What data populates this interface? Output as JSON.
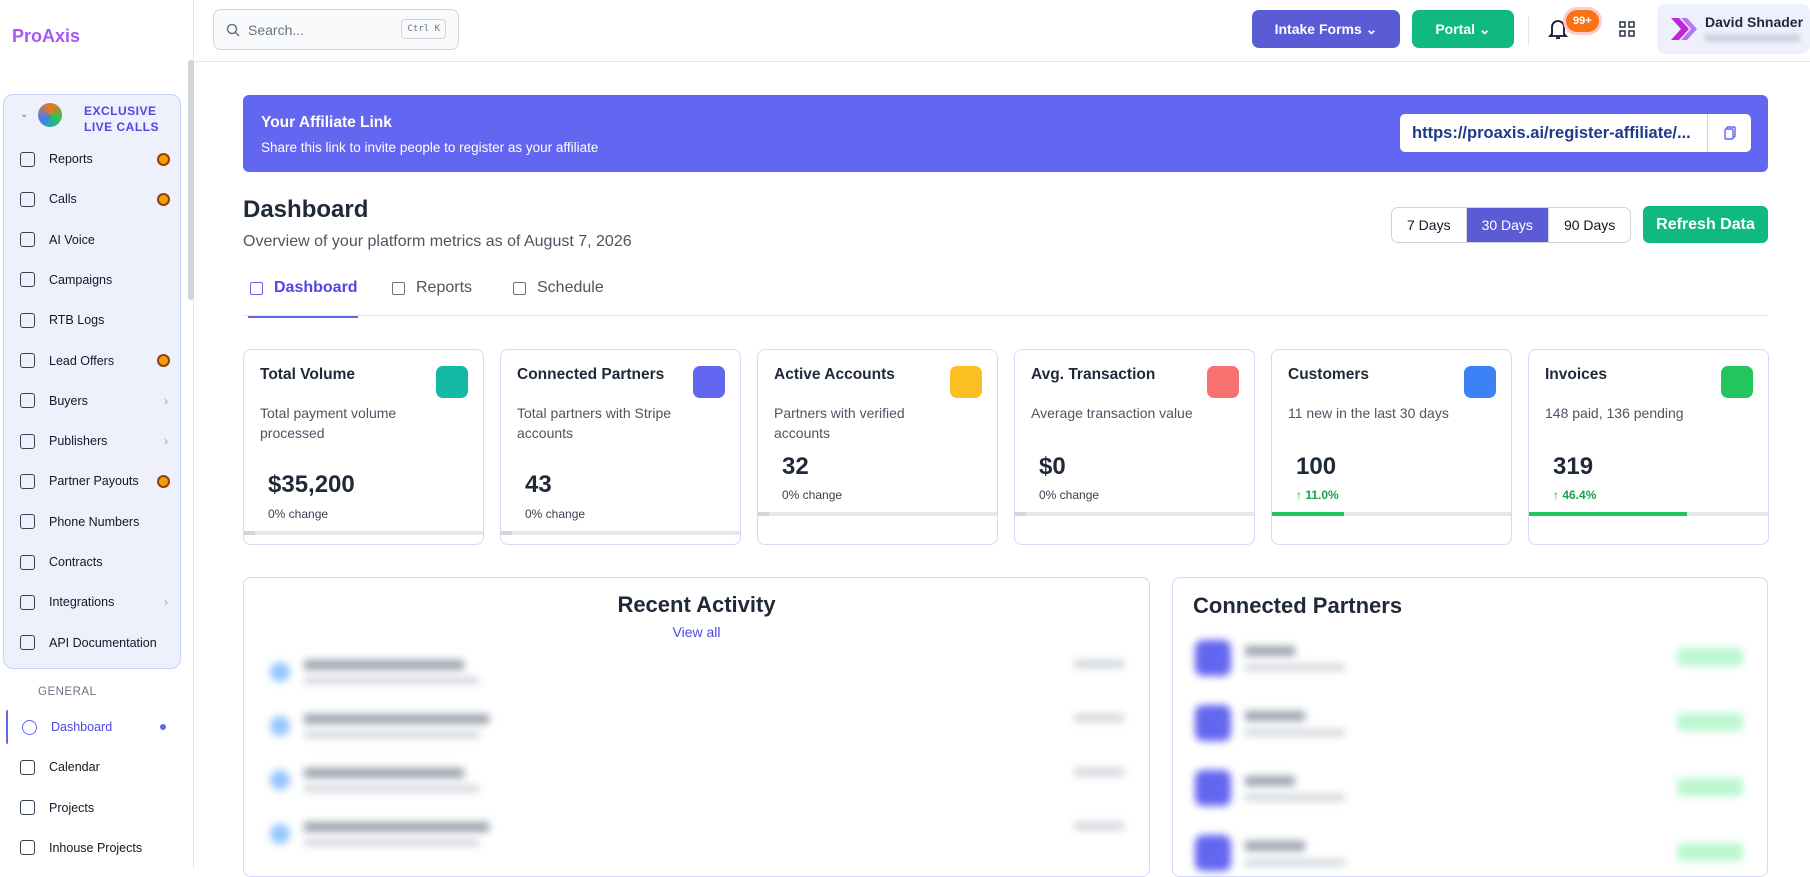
{
  "brand": "ProAxis",
  "search": {
    "placeholder": "Search...",
    "shortcut": "Ctrl K"
  },
  "header": {
    "buttons": [
      "Intake Forms",
      "Portal"
    ],
    "notifications": "99+",
    "user": "David Shnader"
  },
  "sidebar": {
    "section": "EXCLUSIVE LIVE CALLS",
    "items": [
      {
        "label": "Reports",
        "star": true
      },
      {
        "label": "Calls",
        "star": true
      },
      {
        "label": "AI Voice"
      },
      {
        "label": "Campaigns"
      },
      {
        "label": "RTB Logs"
      },
      {
        "label": "Lead Offers",
        "star": true
      },
      {
        "label": "Buyers",
        "chevron": true
      },
      {
        "label": "Publishers",
        "chevron": true
      },
      {
        "label": "Partner Payouts",
        "star": true
      },
      {
        "label": "Phone Numbers"
      },
      {
        "label": "Contracts"
      },
      {
        "label": "Integrations",
        "chevron": true
      },
      {
        "label": "API Documentation"
      }
    ],
    "general": "GENERAL",
    "general_items": [
      {
        "label": "Dashboard",
        "active": true
      },
      {
        "label": "Calendar"
      },
      {
        "label": "Projects"
      },
      {
        "label": "Inhouse Projects"
      }
    ]
  },
  "affiliate": {
    "title": "Your Affiliate Link",
    "subtitle": "Share this link to invite people to register as your affiliate",
    "link": "https://proaxis.ai/register-affiliate/..."
  },
  "dashboard": {
    "title": "Dashboard",
    "subtitle": "Overview of your platform metrics as of August 7, 2026",
    "ranges": [
      "7 Days",
      "30 Days",
      "90 Days"
    ],
    "refresh": "Refresh Data",
    "tabs": [
      "Dashboard",
      "Reports",
      "Schedule"
    ]
  },
  "cards": [
    {
      "title": "Total Volume",
      "description": "Total payment volume processed",
      "value": "$35,200",
      "change": "0% change",
      "color": "#14b8a6"
    },
    {
      "title": "Connected Partners",
      "description": "Total partners with Stripe accounts",
      "value": "43",
      "change": "0% change",
      "color": "#6366f1"
    },
    {
      "title": "Active Accounts",
      "description": "Partners with verified accounts",
      "value": "32",
      "change": "0% change",
      "color": "#fbbf24"
    },
    {
      "title": "Avg. Transaction",
      "description": "Average transaction value",
      "value": "$0",
      "change": "0% change",
      "color": "#f87171"
    },
    {
      "title": "Customers",
      "description": "11 new in the last 30 days",
      "value": "100",
      "change": "↑ 11.0%",
      "color": "#3b82f6"
    },
    {
      "title": "Invoices",
      "description": "148 paid, 136 pending",
      "value": "319",
      "change": "↑ 46.4%",
      "color": "#22c55e"
    }
  ],
  "recent_activity": {
    "title": "Recent Activity",
    "link": "View all"
  },
  "connected_partners": {
    "title": "Connected Partners"
  }
}
